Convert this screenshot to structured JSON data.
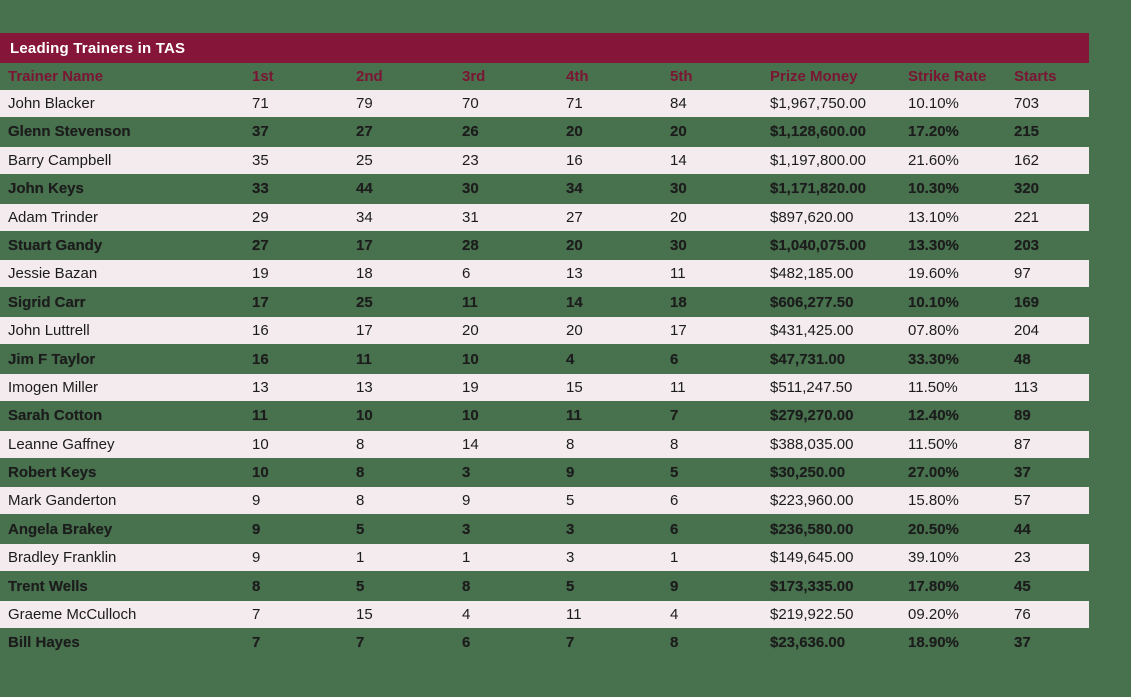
{
  "page": {
    "background_color": "#48714E"
  },
  "table": {
    "title": "Leading Trainers in TAS",
    "colors": {
      "title_bar_bg": "#85163A",
      "title_text": "#FFFFFF",
      "header_text": "#7B1534",
      "light_row_bg": "#F3EBEE",
      "row_text": "#1C1C1C"
    },
    "columns": [
      "Trainer Name",
      "1st",
      "2nd",
      "3rd",
      "4th",
      "5th",
      "Prize Money",
      "Strike Rate",
      "Starts"
    ],
    "rows": [
      [
        "John Blacker",
        "71",
        "79",
        "70",
        "71",
        "84",
        "$1,967,750.00",
        "10.10%",
        "703"
      ],
      [
        "Glenn Stevenson",
        "37",
        "27",
        "26",
        "20",
        "20",
        "$1,128,600.00",
        "17.20%",
        "215"
      ],
      [
        "Barry Campbell",
        "35",
        "25",
        "23",
        "16",
        "14",
        "$1,197,800.00",
        "21.60%",
        "162"
      ],
      [
        "John Keys",
        "33",
        "44",
        "30",
        "34",
        "30",
        "$1,171,820.00",
        "10.30%",
        "320"
      ],
      [
        "Adam Trinder",
        "29",
        "34",
        "31",
        "27",
        "20",
        "$897,620.00",
        "13.10%",
        "221"
      ],
      [
        "Stuart Gandy",
        "27",
        "17",
        "28",
        "20",
        "30",
        "$1,040,075.00",
        "13.30%",
        "203"
      ],
      [
        "Jessie Bazan",
        "19",
        "18",
        "6",
        "13",
        "11",
        "$482,185.00",
        "19.60%",
        "97"
      ],
      [
        "Sigrid Carr",
        "17",
        "25",
        "11",
        "14",
        "18",
        "$606,277.50",
        "10.10%",
        "169"
      ],
      [
        "John Luttrell",
        "16",
        "17",
        "20",
        "20",
        "17",
        "$431,425.00",
        "07.80%",
        "204"
      ],
      [
        "Jim F Taylor",
        "16",
        "11",
        "10",
        "4",
        "6",
        "$47,731.00",
        "33.30%",
        "48"
      ],
      [
        "Imogen Miller",
        "13",
        "13",
        "19",
        "15",
        "11",
        "$511,247.50",
        "11.50%",
        "113"
      ],
      [
        "Sarah Cotton",
        "11",
        "10",
        "10",
        "11",
        "7",
        "$279,270.00",
        "12.40%",
        "89"
      ],
      [
        "Leanne Gaffney",
        "10",
        "8",
        "14",
        "8",
        "8",
        "$388,035.00",
        "11.50%",
        "87"
      ],
      [
        "Robert Keys",
        "10",
        "8",
        "3",
        "9",
        "5",
        "$30,250.00",
        "27.00%",
        "37"
      ],
      [
        "Mark Ganderton",
        "9",
        "8",
        "9",
        "5",
        "6",
        "$223,960.00",
        "15.80%",
        "57"
      ],
      [
        "Angela Brakey",
        "9",
        "5",
        "3",
        "3",
        "6",
        "$236,580.00",
        "20.50%",
        "44"
      ],
      [
        "Bradley Franklin",
        "9",
        "1",
        "1",
        "3",
        "1",
        "$149,645.00",
        "39.10%",
        "23"
      ],
      [
        "Trent Wells",
        "8",
        "5",
        "8",
        "5",
        "9",
        "$173,335.00",
        "17.80%",
        "45"
      ],
      [
        "Graeme McCulloch",
        "7",
        "15",
        "4",
        "11",
        "4",
        "$219,922.50",
        "09.20%",
        "76"
      ],
      [
        "Bill Hayes",
        "7",
        "7",
        "6",
        "7",
        "8",
        "$23,636.00",
        "18.90%",
        "37"
      ]
    ]
  }
}
